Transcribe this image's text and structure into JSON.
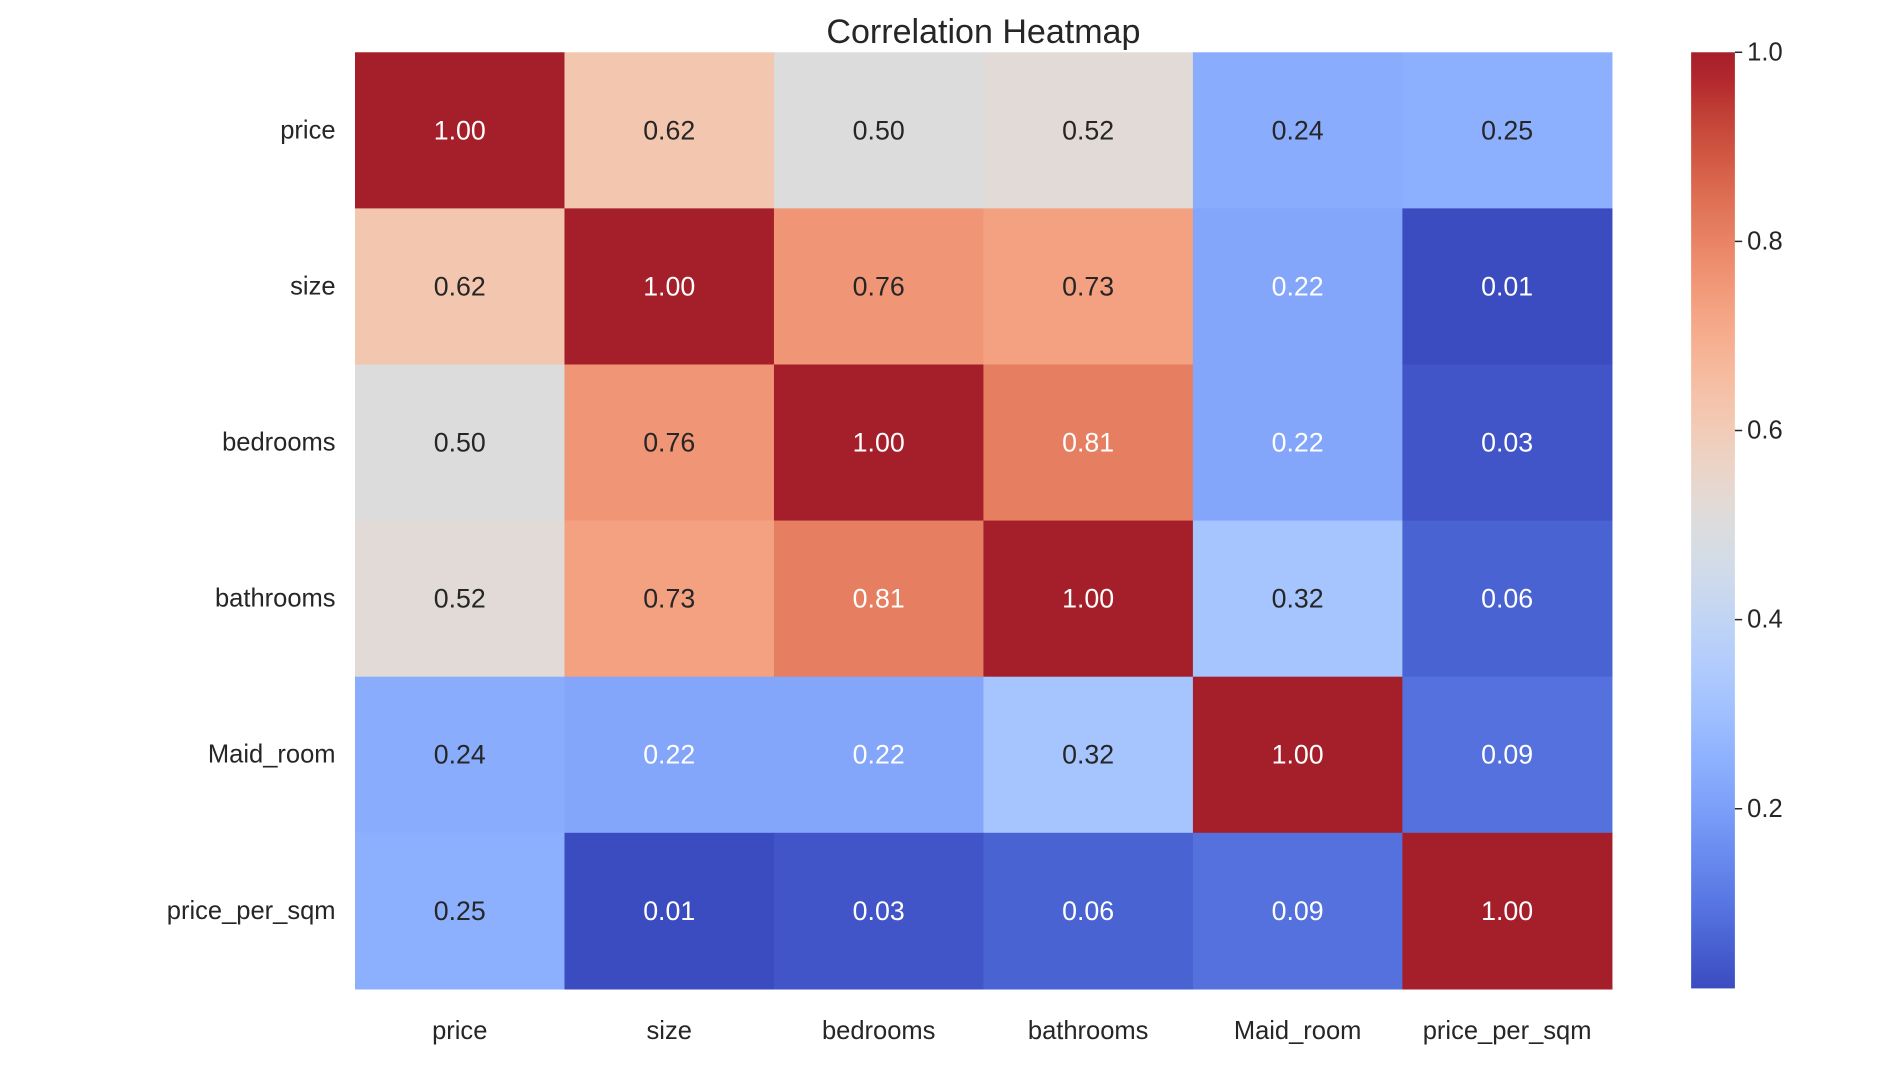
{
  "chart_data": {
    "type": "heatmap",
    "title": "Correlation Heatmap",
    "row_labels": [
      "price",
      "size",
      "bedrooms",
      "bathrooms",
      "Maid_room",
      "price_per_sqm"
    ],
    "col_labels": [
      "price",
      "size",
      "bedrooms",
      "bathrooms",
      "Maid_room",
      "price_per_sqm"
    ],
    "matrix": [
      [
        1.0,
        0.62,
        0.5,
        0.52,
        0.24,
        0.25
      ],
      [
        0.62,
        1.0,
        0.76,
        0.73,
        0.22,
        0.01
      ],
      [
        0.5,
        0.76,
        1.0,
        0.81,
        0.22,
        0.03
      ],
      [
        0.52,
        0.73,
        0.81,
        1.0,
        0.32,
        0.06
      ],
      [
        0.24,
        0.22,
        0.22,
        0.32,
        1.0,
        0.09
      ],
      [
        0.25,
        0.01,
        0.03,
        0.06,
        0.09,
        1.0
      ]
    ],
    "annotation_format": "0.00",
    "colormap": "coolwarm",
    "vmin": 0.01,
    "vmax": 1.0,
    "colorbar": {
      "ticks": [
        1.0,
        0.8,
        0.6,
        0.4,
        0.2
      ],
      "tick_labels": [
        "1.0",
        "0.8",
        "0.6",
        "0.4",
        "0.2"
      ],
      "placement": "right"
    },
    "colors": {
      "cool_end": "#3b4cc0",
      "neutral": "#dddddd",
      "warm_end": "#b40426",
      "text_dark": "#262626",
      "text_light": "#ffffff"
    }
  }
}
